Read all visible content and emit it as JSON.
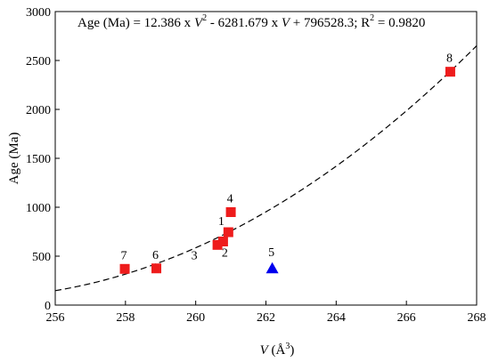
{
  "chart_data": {
    "type": "scatter",
    "xlabel_var": "V",
    "xlabel_unit": " (Å",
    "xlabel_sup": "3",
    "xlabel_close": ")",
    "ylabel": "Age (Ma)",
    "xlim": [
      256,
      268
    ],
    "ylim": [
      0,
      3000
    ],
    "xticks": [
      256,
      258,
      260,
      262,
      264,
      266,
      268
    ],
    "yticks": [
      0,
      500,
      1000,
      1500,
      2000,
      2500,
      3000
    ],
    "grid": false,
    "equation": {
      "lhs": "Age (Ma) = 12.386 x ",
      "var1": "V",
      "sup1": "2",
      "mid": " - 6281.679 x ",
      "var2": "V",
      "rhs": " + 796528.3;  R",
      "sup2": "2",
      "tail": " = 0.9820"
    },
    "fit": {
      "a": 12.386,
      "b": -6281.679,
      "c": 796528.3,
      "style": "dashed",
      "color": "#000000"
    },
    "series": [
      {
        "marker": "square",
        "color": "#ee1c1c",
        "points": [
          {
            "label": "1",
            "x": 260.93,
            "y": 745
          },
          {
            "label": "2",
            "x": 260.78,
            "y": 650
          },
          {
            "label": "3",
            "x": 260.62,
            "y": 615
          },
          {
            "label": "4",
            "x": 261.0,
            "y": 950
          },
          {
            "label": "6",
            "x": 258.88,
            "y": 375
          },
          {
            "label": "7",
            "x": 257.98,
            "y": 370
          },
          {
            "label": "8",
            "x": 267.25,
            "y": 2385
          }
        ]
      },
      {
        "marker": "triangle",
        "color": "#0000ee",
        "points": [
          {
            "label": "5",
            "x": 262.18,
            "y": 375
          }
        ]
      }
    ]
  }
}
